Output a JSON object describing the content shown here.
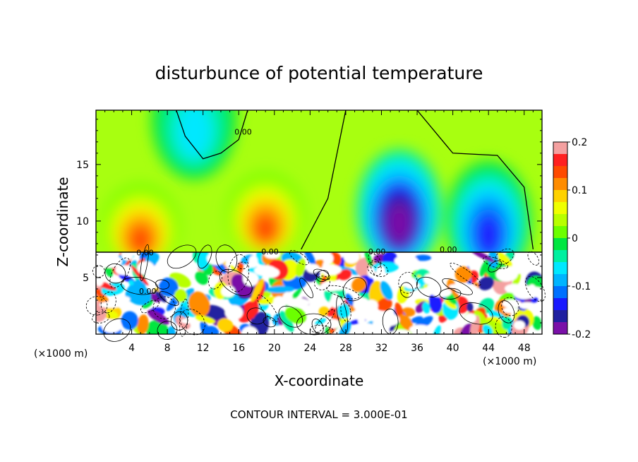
{
  "chart_data": {
    "type": "heatmap",
    "title": "disturbunce of potential temperature",
    "xlabel": "X-coordinate",
    "ylabel": "Z-coordinate",
    "x_unit_left": "(×1000 m)",
    "x_unit_right": "(×1000 m)",
    "footer": "CONTOUR INTERVAL = 3.000E-01",
    "xlim": [
      0,
      50
    ],
    "ylim": [
      0,
      19.8
    ],
    "x_ticks": [
      4,
      8,
      12,
      16,
      20,
      24,
      28,
      32,
      36,
      40,
      44,
      48
    ],
    "y_ticks": [
      5,
      10,
      15
    ],
    "colorbar": {
      "min": -0.2,
      "max": 0.2,
      "ticks": [
        "0.2",
        "0.1",
        "0",
        "-0.1",
        "-0.2"
      ],
      "colors": [
        "#f4a0a0",
        "#ff2020",
        "#ff4a00",
        "#ff8c00",
        "#ffd200",
        "#f0ff00",
        "#b8ff00",
        "#6cff00",
        "#00e640",
        "#00f0a0",
        "#00e8ff",
        "#00b4ff",
        "#0070ff",
        "#1a1aff",
        "#2020a0",
        "#7a10a8"
      ]
    },
    "contour_labels": [
      {
        "text": "0.00",
        "x": 16.5,
        "z": 17.9
      },
      {
        "text": "0.00",
        "x": 5.5,
        "z": 7.2
      },
      {
        "text": "0.00",
        "x": 19.5,
        "z": 7.3
      },
      {
        "text": "0.00",
        "x": 31.5,
        "z": 7.3
      },
      {
        "text": "0.00",
        "x": 39.5,
        "z": 7.5
      },
      {
        "text": "0.00",
        "x": 5.8,
        "z": 3.8
      }
    ],
    "upper_layer": {
      "z_range": [
        7.4,
        19.8
      ],
      "features": [
        {
          "kind": "warm",
          "x": 5,
          "z": 9.5,
          "value": 0.13
        },
        {
          "kind": "warm",
          "x": 19,
          "z": 10.5,
          "value": 0.15
        },
        {
          "kind": "cold",
          "x": 11,
          "z": 19,
          "value": -0.06
        },
        {
          "kind": "cold",
          "x": 34,
          "z": 11,
          "value": -0.19
        },
        {
          "kind": "cold",
          "x": 44,
          "z": 10,
          "value": -0.14
        }
      ]
    }
  }
}
